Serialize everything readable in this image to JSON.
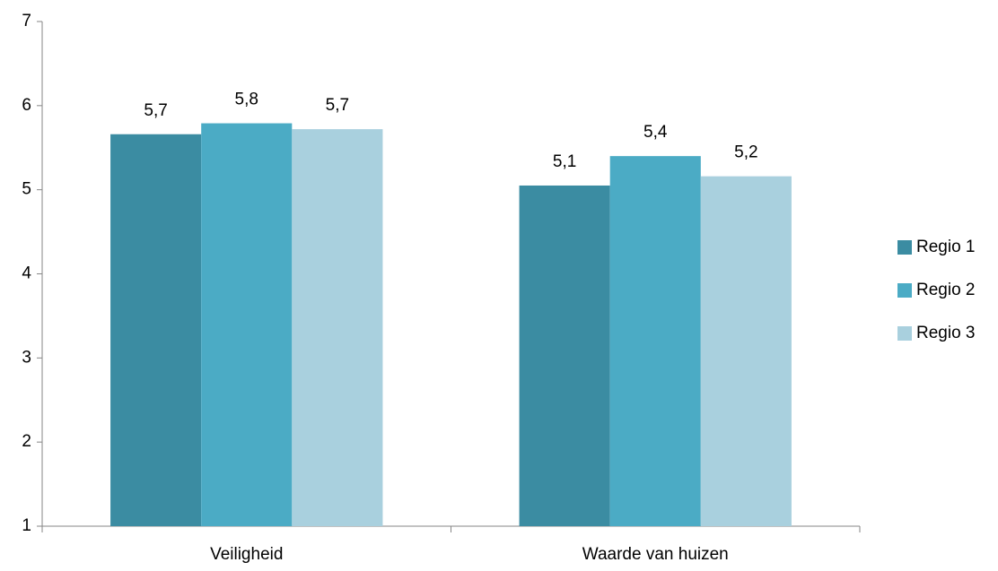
{
  "chart_data": {
    "type": "bar",
    "categories": [
      "Veiligheid",
      "Waarde van huizen"
    ],
    "series": [
      {
        "name": "Regio 1",
        "color": "#3b8ca2",
        "values": [
          5.66,
          5.05
        ],
        "value_labels": [
          "5,7",
          "5,1"
        ]
      },
      {
        "name": "Regio 2",
        "color": "#4babc5",
        "values": [
          5.79,
          5.4
        ],
        "value_labels": [
          "5,8",
          "5,4"
        ]
      },
      {
        "name": "Regio 3",
        "color": "#a9d0de",
        "values": [
          5.72,
          5.16
        ],
        "value_labels": [
          "5,7",
          "5,2"
        ]
      }
    ],
    "ylim": [
      1,
      7
    ],
    "yticks": [
      1,
      2,
      3,
      4,
      5,
      6,
      7
    ],
    "grid": false,
    "legend": "right"
  }
}
